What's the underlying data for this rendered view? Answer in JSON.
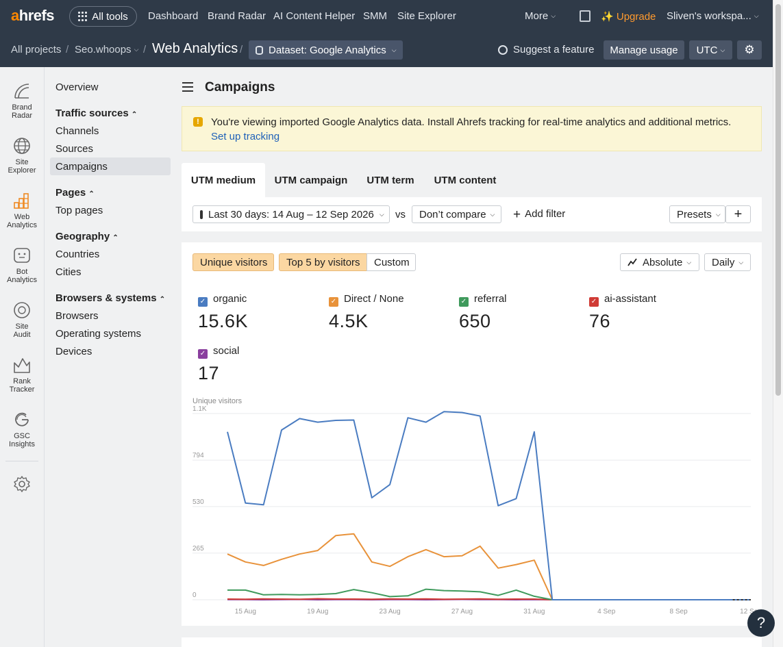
{
  "topbar": {
    "logo_a": "a",
    "logo_rest": "hrefs",
    "all_tools": "All tools",
    "nav": [
      "Dashboard",
      "Brand Radar",
      "AI Content Helper",
      "SMM",
      "Site Explorer"
    ],
    "more": "More",
    "upgrade": "Upgrade",
    "workspace": "Sliven's workspa..."
  },
  "breadcrumb": {
    "all_projects": "All projects",
    "project": "Seo.whoops",
    "title": "Web Analytics",
    "dataset": "Dataset: Google Analytics",
    "suggest": "Suggest a feature",
    "manage_usage": "Manage usage",
    "timezone": "UTC"
  },
  "rail": [
    {
      "label1": "Brand",
      "label2": "Radar",
      "icon": "brand-radar-icon"
    },
    {
      "label1": "Site",
      "label2": "Explorer",
      "icon": "globe-icon"
    },
    {
      "label1": "Web",
      "label2": "Analytics",
      "icon": "bar-chart-icon"
    },
    {
      "label1": "Bot",
      "label2": "Analytics",
      "icon": "bot-icon"
    },
    {
      "label1": "Site",
      "label2": "Audit",
      "icon": "audit-icon"
    },
    {
      "label1": "Rank",
      "label2": "Tracker",
      "icon": "rank-tracker-icon"
    },
    {
      "label1": "GSC",
      "label2": "Insights",
      "icon": "google-icon"
    }
  ],
  "sidenav": {
    "overview": "Overview",
    "traffic_sources": "Traffic sources",
    "channels": "Channels",
    "sources": "Sources",
    "campaigns": "Campaigns",
    "pages": "Pages",
    "top_pages": "Top pages",
    "geography": "Geography",
    "countries": "Countries",
    "cities": "Cities",
    "browsers_systems": "Browsers & systems",
    "browsers": "Browsers",
    "operating_systems": "Operating systems",
    "devices": "Devices"
  },
  "main": {
    "title": "Campaigns",
    "banner_text": "You're viewing imported Google Analytics data. Install Ahrefs tracking for real-time analytics and additional metrics.",
    "banner_link": "Set up tracking",
    "tabs": [
      "UTM medium",
      "UTM campaign",
      "UTM term",
      "UTM content"
    ],
    "date_range": "Last 30 days: 14 Aug – 12 Sep 2026",
    "vs": "vs",
    "compare": "Don’t compare",
    "add_filter": "Add filter",
    "presets": "Presets",
    "metric": "Unique visitors",
    "top5": "Top 5 by visitors",
    "custom": "Custom",
    "absolute": "Absolute",
    "daily": "Daily"
  },
  "legend": [
    {
      "name": "organic",
      "value": "15.6K",
      "color": "#4a7cc1"
    },
    {
      "name": "Direct / None",
      "value": "4.5K",
      "color": "#e8923a"
    },
    {
      "name": "referral",
      "value": "650",
      "color": "#3f9a5c"
    },
    {
      "name": "ai-assistant",
      "value": "76",
      "color": "#d03b35"
    },
    {
      "name": "social",
      "value": "17",
      "color": "#8a3f9e"
    }
  ],
  "chart_data": {
    "type": "line",
    "ylabel": "Unique visitors",
    "y_ticks": [
      "0",
      "265",
      "530",
      "794",
      "1.1K"
    ],
    "y_tick_values": [
      0,
      265,
      530,
      794,
      1059
    ],
    "x_tick_labels": [
      "15 Aug",
      "19 Aug",
      "23 Aug",
      "27 Aug",
      "31 Aug",
      "4 Sep",
      "8 Sep",
      "12 Sep"
    ],
    "x": [
      "14 Aug",
      "15 Aug",
      "16 Aug",
      "17 Aug",
      "18 Aug",
      "19 Aug",
      "20 Aug",
      "21 Aug",
      "22 Aug",
      "23 Aug",
      "24 Aug",
      "25 Aug",
      "26 Aug",
      "27 Aug",
      "28 Aug",
      "29 Aug",
      "30 Aug",
      "31 Aug",
      "1 Sep",
      "2 Sep",
      "3 Sep",
      "4 Sep",
      "5 Sep",
      "6 Sep",
      "7 Sep",
      "8 Sep",
      "9 Sep",
      "10 Sep",
      "11 Sep",
      "12 Sep"
    ],
    "ylim": [
      0,
      1059
    ],
    "series": [
      {
        "name": "organic",
        "color": "#4a7cc1",
        "values": [
          955,
          550,
          540,
          965,
          1030,
          1010,
          1020,
          1022,
          580,
          655,
          1035,
          1010,
          1070,
          1065,
          1045,
          535,
          575,
          955,
          0,
          0,
          0,
          0,
          0,
          0,
          0,
          0,
          0,
          0,
          0,
          0
        ]
      },
      {
        "name": "Direct / None",
        "color": "#e8923a",
        "values": [
          260,
          215,
          195,
          230,
          260,
          280,
          365,
          375,
          215,
          190,
          245,
          285,
          245,
          250,
          305,
          180,
          200,
          225,
          0,
          0,
          0,
          0,
          0,
          0,
          0,
          0,
          0,
          0,
          0,
          0
        ]
      },
      {
        "name": "referral",
        "color": "#3f9a5c",
        "values": [
          55,
          55,
          28,
          30,
          28,
          30,
          35,
          58,
          40,
          18,
          22,
          60,
          52,
          50,
          45,
          25,
          55,
          20,
          0,
          0,
          0,
          0,
          0,
          0,
          0,
          0,
          0,
          0,
          0,
          0
        ]
      },
      {
        "name": "ai-assistant",
        "color": "#d03b35",
        "values": [
          4,
          3,
          5,
          4,
          3,
          6,
          4,
          4,
          3,
          5,
          4,
          5,
          3,
          4,
          5,
          3,
          4,
          4,
          0,
          0,
          0,
          0,
          0,
          0,
          0,
          0,
          0,
          0,
          0,
          0
        ]
      },
      {
        "name": "social",
        "color": "#8a3f9e",
        "values": [
          1,
          1,
          0,
          1,
          2,
          0,
          1,
          1,
          0,
          1,
          1,
          0,
          1,
          2,
          1,
          1,
          0,
          1,
          0,
          0,
          0,
          0,
          0,
          0,
          0,
          0,
          0,
          0,
          0,
          0
        ]
      }
    ]
  }
}
